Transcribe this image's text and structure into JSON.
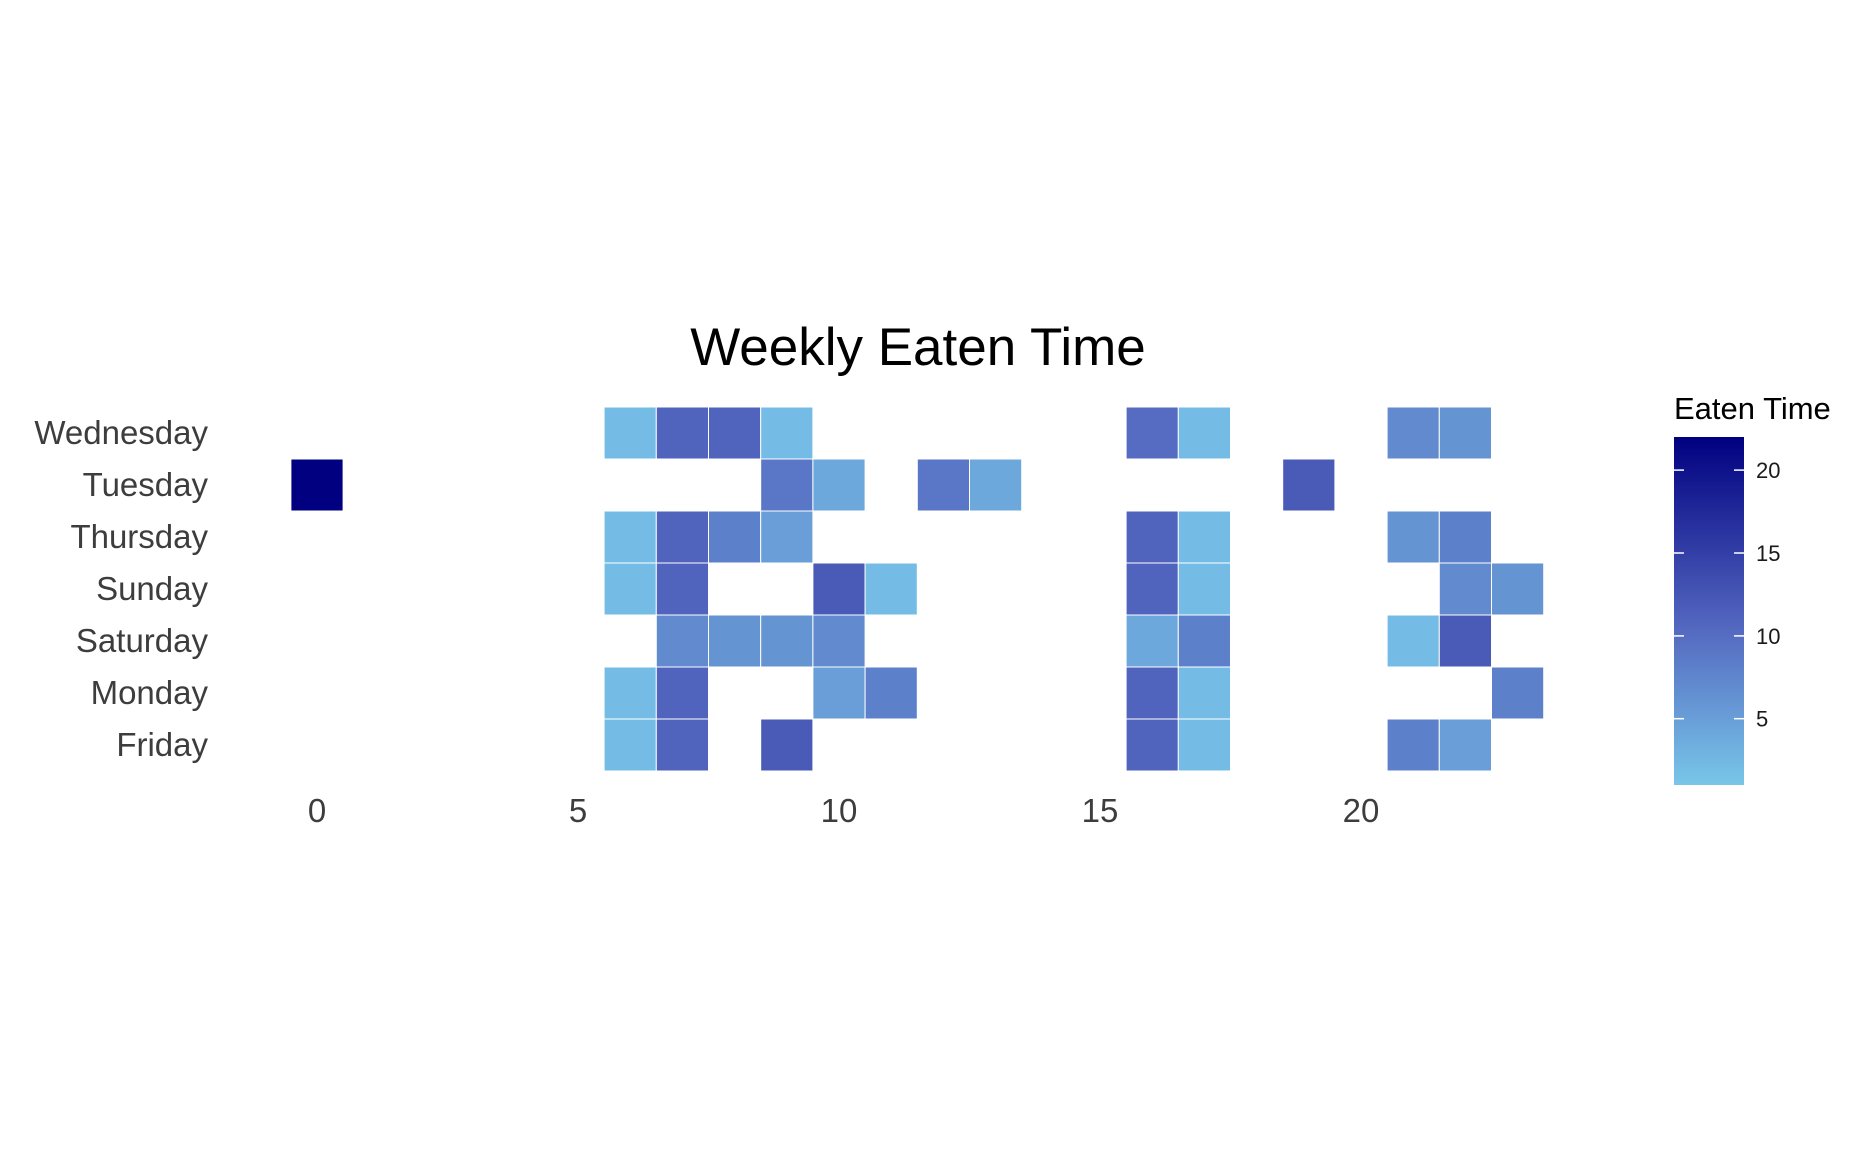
{
  "chart_data": {
    "type": "heatmap",
    "title": "Weekly Eaten Time",
    "xlabel": "",
    "ylabel": "",
    "x_ticks": [
      0,
      5,
      10,
      15,
      20
    ],
    "xlim": [
      -0.5,
      23.5
    ],
    "y_categories": [
      "Wednesday",
      "Tuesday",
      "Thursday",
      "Sunday",
      "Saturday",
      "Monday",
      "Friday"
    ],
    "legend": {
      "title": "Eaten Time",
      "ticks": [
        20,
        15,
        10,
        5
      ],
      "range": [
        1,
        22
      ],
      "placement": "right",
      "colors": {
        "low": "#78c6e9",
        "mid": "#5468c0",
        "high": "#000080"
      }
    },
    "grid": false,
    "cells": [
      {
        "day": "Wednesday",
        "hour": 6,
        "value": 2
      },
      {
        "day": "Wednesday",
        "hour": 7,
        "value": 11
      },
      {
        "day": "Wednesday",
        "hour": 8,
        "value": 11
      },
      {
        "day": "Wednesday",
        "hour": 9,
        "value": 2
      },
      {
        "day": "Wednesday",
        "hour": 16,
        "value": 10
      },
      {
        "day": "Wednesday",
        "hour": 17,
        "value": 2
      },
      {
        "day": "Wednesday",
        "hour": 21,
        "value": 7
      },
      {
        "day": "Wednesday",
        "hour": 22,
        "value": 6
      },
      {
        "day": "Tuesday",
        "hour": 0,
        "value": 22
      },
      {
        "day": "Tuesday",
        "hour": 9,
        "value": 9
      },
      {
        "day": "Tuesday",
        "hour": 10,
        "value": 4
      },
      {
        "day": "Tuesday",
        "hour": 12,
        "value": 9
      },
      {
        "day": "Tuesday",
        "hour": 13,
        "value": 4
      },
      {
        "day": "Tuesday",
        "hour": 19,
        "value": 12
      },
      {
        "day": "Thursday",
        "hour": 6,
        "value": 2
      },
      {
        "day": "Thursday",
        "hour": 7,
        "value": 11
      },
      {
        "day": "Thursday",
        "hour": 8,
        "value": 8
      },
      {
        "day": "Thursday",
        "hour": 9,
        "value": 5
      },
      {
        "day": "Thursday",
        "hour": 16,
        "value": 11
      },
      {
        "day": "Thursday",
        "hour": 17,
        "value": 2
      },
      {
        "day": "Thursday",
        "hour": 21,
        "value": 6
      },
      {
        "day": "Thursday",
        "hour": 22,
        "value": 8
      },
      {
        "day": "Sunday",
        "hour": 6,
        "value": 2
      },
      {
        "day": "Sunday",
        "hour": 7,
        "value": 11
      },
      {
        "day": "Sunday",
        "hour": 10,
        "value": 12
      },
      {
        "day": "Sunday",
        "hour": 11,
        "value": 2
      },
      {
        "day": "Sunday",
        "hour": 16,
        "value": 11
      },
      {
        "day": "Sunday",
        "hour": 17,
        "value": 2
      },
      {
        "day": "Sunday",
        "hour": 22,
        "value": 7
      },
      {
        "day": "Sunday",
        "hour": 23,
        "value": 6
      },
      {
        "day": "Saturday",
        "hour": 7,
        "value": 7
      },
      {
        "day": "Saturday",
        "hour": 8,
        "value": 6
      },
      {
        "day": "Saturday",
        "hour": 9,
        "value": 6
      },
      {
        "day": "Saturday",
        "hour": 10,
        "value": 7
      },
      {
        "day": "Saturday",
        "hour": 16,
        "value": 4
      },
      {
        "day": "Saturday",
        "hour": 17,
        "value": 8
      },
      {
        "day": "Saturday",
        "hour": 21,
        "value": 2
      },
      {
        "day": "Saturday",
        "hour": 22,
        "value": 12
      },
      {
        "day": "Monday",
        "hour": 6,
        "value": 2
      },
      {
        "day": "Monday",
        "hour": 7,
        "value": 11
      },
      {
        "day": "Monday",
        "hour": 10,
        "value": 5
      },
      {
        "day": "Monday",
        "hour": 11,
        "value": 8
      },
      {
        "day": "Monday",
        "hour": 16,
        "value": 11
      },
      {
        "day": "Monday",
        "hour": 17,
        "value": 2
      },
      {
        "day": "Monday",
        "hour": 23,
        "value": 8
      },
      {
        "day": "Friday",
        "hour": 6,
        "value": 2
      },
      {
        "day": "Friday",
        "hour": 7,
        "value": 11
      },
      {
        "day": "Friday",
        "hour": 9,
        "value": 12
      },
      {
        "day": "Friday",
        "hour": 16,
        "value": 11
      },
      {
        "day": "Friday",
        "hour": 17,
        "value": 2
      },
      {
        "day": "Friday",
        "hour": 21,
        "value": 8
      },
      {
        "day": "Friday",
        "hour": 22,
        "value": 5
      }
    ]
  }
}
